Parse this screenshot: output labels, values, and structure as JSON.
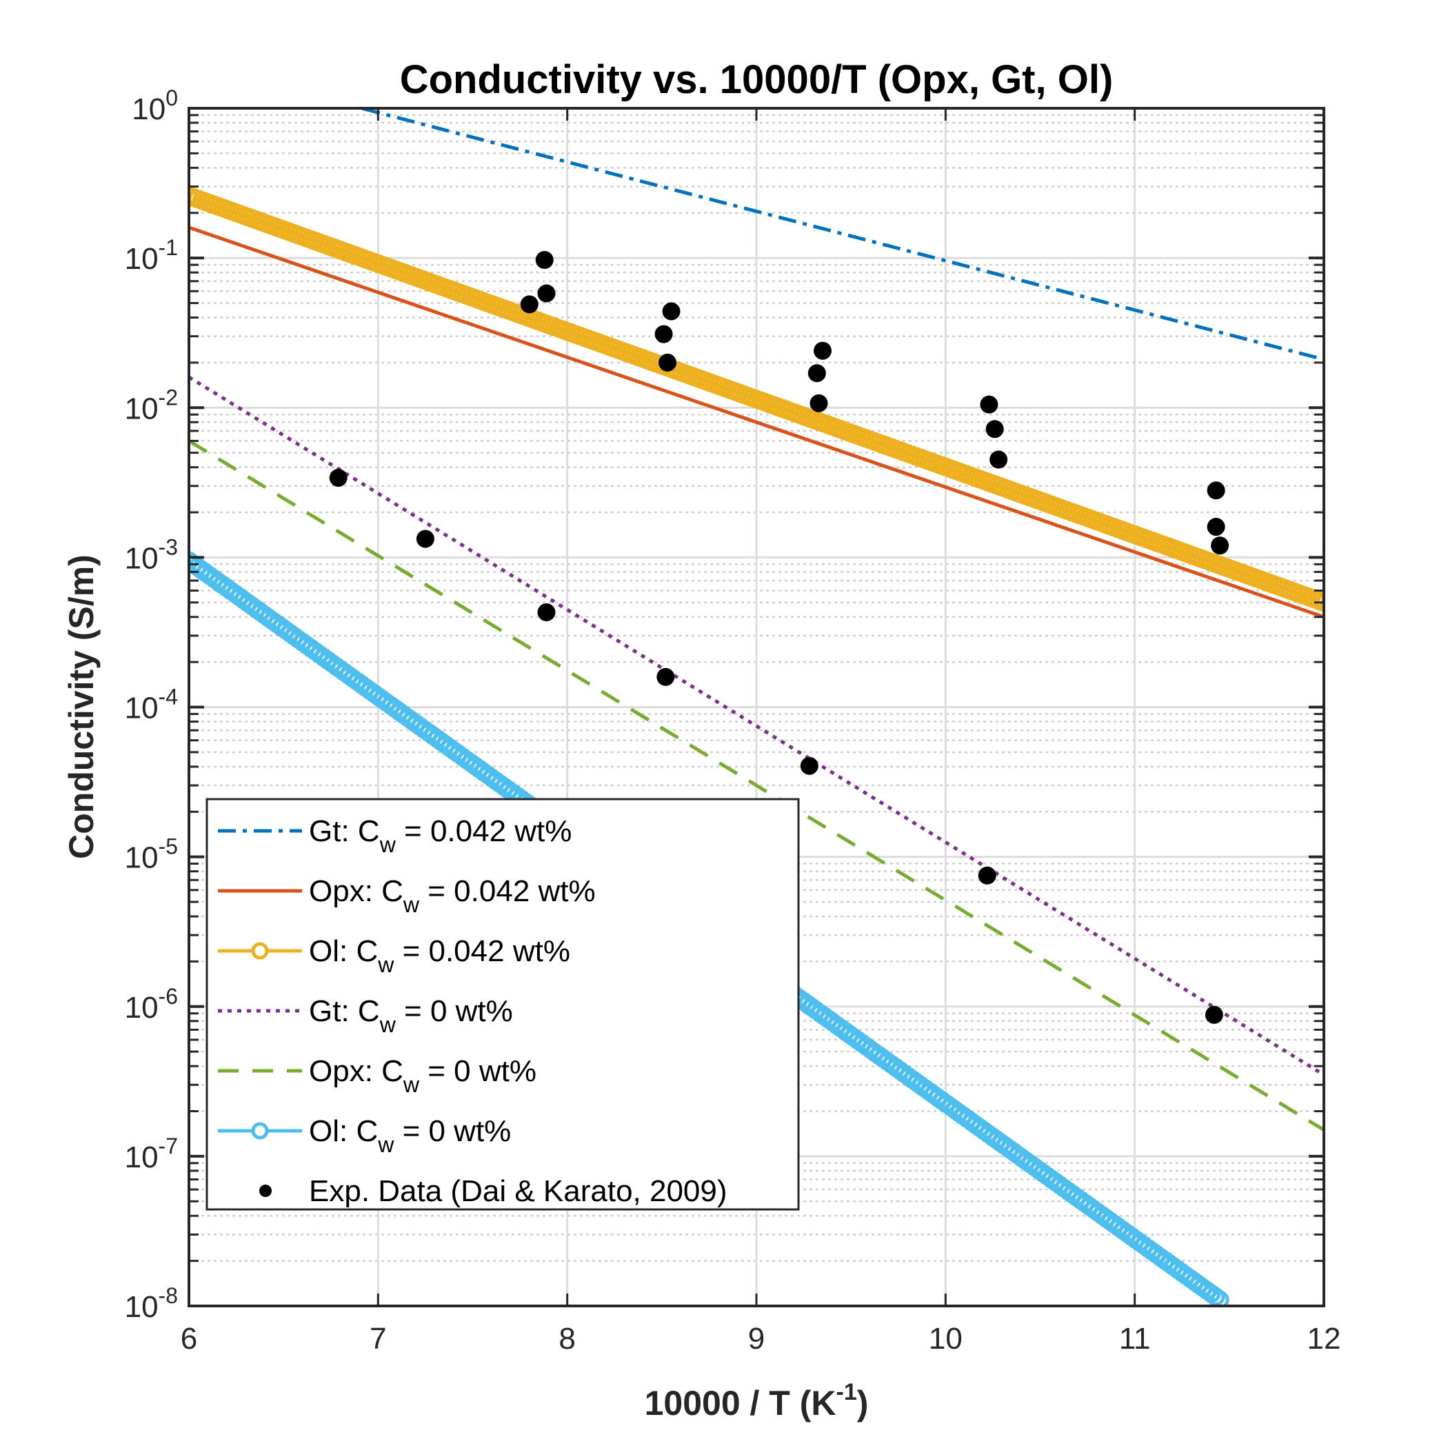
{
  "chart_data": {
    "type": "line",
    "title": "Conductivity vs. 10000/T (Opx, Gt, Ol)",
    "xlabel": {
      "base": "10000 / T (K",
      "sup": "-1",
      "tail": ")"
    },
    "ylabel": "Conductivity (S/m)",
    "xlim": [
      6,
      12
    ],
    "ylim": [
      1e-08,
      1
    ],
    "yscale": "log",
    "grid": true,
    "minor_grid": true,
    "legend_position": "lower-left",
    "x_ticks": [
      {
        "value": 6,
        "label": "6"
      },
      {
        "value": 7,
        "label": "7"
      },
      {
        "value": 8,
        "label": "8"
      },
      {
        "value": 9,
        "label": "9"
      },
      {
        "value": 10,
        "label": "10"
      },
      {
        "value": 11,
        "label": "11"
      },
      {
        "value": 12,
        "label": "12"
      }
    ],
    "y_ticks": [
      {
        "exp": 0,
        "base": "10",
        "sup": "0"
      },
      {
        "exp": -1,
        "base": "10",
        "sup": "-1"
      },
      {
        "exp": -2,
        "base": "10",
        "sup": "-2"
      },
      {
        "exp": -3,
        "base": "10",
        "sup": "-3"
      },
      {
        "exp": -4,
        "base": "10",
        "sup": "-4"
      },
      {
        "exp": -5,
        "base": "10",
        "sup": "-5"
      },
      {
        "exp": -6,
        "base": "10",
        "sup": "-6"
      },
      {
        "exp": -7,
        "base": "10",
        "sup": "-7"
      },
      {
        "exp": -8,
        "base": "10",
        "sup": "-8"
      }
    ],
    "series": [
      {
        "name": "Gt: C_w = 0.042 wt%",
        "legend": {
          "pre": "Gt: C",
          "sub": "w",
          "post": " = 0.042 wt%"
        },
        "color": "#0072BD",
        "style": "dashdot",
        "marker": "none",
        "x": [
          6,
          12
        ],
        "y": [
          2.0,
          0.021
        ]
      },
      {
        "name": "Opx: C_w = 0.042 wt%",
        "legend": {
          "pre": "Opx: C",
          "sub": "w",
          "post": " = 0.042 wt%"
        },
        "color": "#D95319",
        "style": "solid",
        "marker": "none",
        "x": [
          6,
          12
        ],
        "y": [
          0.16,
          0.0004
        ]
      },
      {
        "name": "Ol: C_w = 0.042 wt%",
        "legend": {
          "pre": "Ol: C",
          "sub": "w",
          "post": " = 0.042 wt%"
        },
        "color": "#EDB120",
        "style": "solid",
        "marker": "circle",
        "x": [
          6,
          12
        ],
        "y": [
          0.26,
          0.0005
        ]
      },
      {
        "name": "Gt: C_w = 0 wt%",
        "legend": {
          "pre": "Gt: C",
          "sub": "w",
          "post": " = 0 wt%"
        },
        "color": "#7E2F8E",
        "style": "dotted",
        "marker": "none",
        "x": [
          6,
          12
        ],
        "y": [
          0.016,
          3.5e-07
        ]
      },
      {
        "name": "Opx: C_w = 0 wt%",
        "legend": {
          "pre": "Opx: C",
          "sub": "w",
          "post": " = 0 wt%"
        },
        "color": "#77AC30",
        "style": "dashed",
        "marker": "none",
        "x": [
          6,
          12
        ],
        "y": [
          0.006,
          1.5e-07
        ]
      },
      {
        "name": "Ol: C_w = 0 wt%",
        "legend": {
          "pre": "Ol: C",
          "sub": "w",
          "post": " = 0 wt%"
        },
        "color": "#4DBEEE",
        "style": "solid",
        "marker": "circle",
        "x": [
          6,
          11.45
        ],
        "y": [
          0.00095,
          1.1e-08
        ]
      }
    ],
    "scatter": {
      "name": "Exp. Data (Dai & Karato, 2009)",
      "legend": {
        "pre": "Exp. Data (Dai & Karato, 2009)",
        "sub": "",
        "post": ""
      },
      "color": "#000000",
      "points": [
        {
          "x": 7.8,
          "y": 0.049
        },
        {
          "x": 7.88,
          "y": 0.097
        },
        {
          "x": 7.89,
          "y": 0.058
        },
        {
          "x": 8.51,
          "y": 0.031
        },
        {
          "x": 8.53,
          "y": 0.02
        },
        {
          "x": 8.55,
          "y": 0.044
        },
        {
          "x": 9.32,
          "y": 0.017
        },
        {
          "x": 9.33,
          "y": 0.0107
        },
        {
          "x": 9.35,
          "y": 0.024
        },
        {
          "x": 10.23,
          "y": 0.0105
        },
        {
          "x": 10.26,
          "y": 0.0072
        },
        {
          "x": 10.28,
          "y": 0.0045
        },
        {
          "x": 11.43,
          "y": 0.0028
        },
        {
          "x": 11.43,
          "y": 0.0016
        },
        {
          "x": 11.45,
          "y": 0.0012
        },
        {
          "x": 6.79,
          "y": 0.0034
        },
        {
          "x": 7.25,
          "y": 0.00133
        },
        {
          "x": 7.89,
          "y": 0.00043
        },
        {
          "x": 8.52,
          "y": 0.000159
        },
        {
          "x": 9.28,
          "y": 4.05e-05
        },
        {
          "x": 10.22,
          "y": 7.5e-06
        },
        {
          "x": 11.42,
          "y": 8.8e-07
        }
      ]
    }
  }
}
